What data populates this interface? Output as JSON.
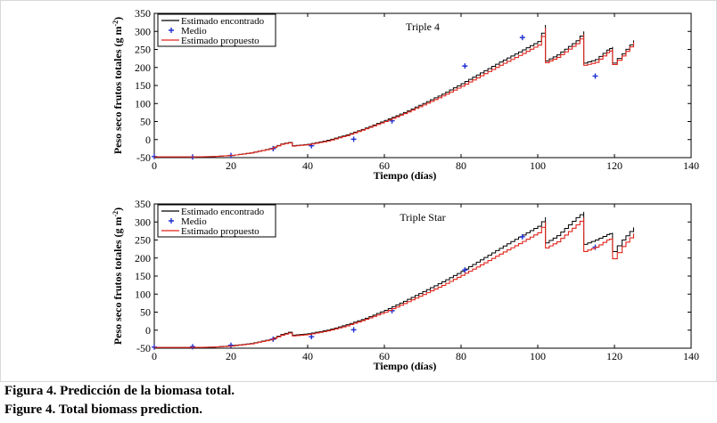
{
  "colors": {
    "encontrado": "#000000",
    "medio": "#1f2fd0",
    "propuesto": "#e0241b"
  },
  "captions": {
    "es": "Figura 4. Predicción de la biomasa total.",
    "en": "Figure 4. Total biomass prediction."
  },
  "chart_data": [
    {
      "type": "line",
      "title": "Triple 4",
      "xlabel": "Tiempo (días)",
      "ylabel": "Peso seco frutos totales (g m",
      "ylabel_sup": "-2",
      "ylabel_end": ")",
      "xlim": [
        0,
        140
      ],
      "ylim": [
        -50,
        350
      ],
      "xticks": [
        0,
        20,
        40,
        60,
        80,
        100,
        120,
        140
      ],
      "yticks": [
        -50,
        0,
        50,
        100,
        150,
        200,
        250,
        300,
        350
      ],
      "legend": [
        "Estimado encontrado",
        "Medio",
        "Estimado propuesto"
      ],
      "series": [
        {
          "name": "Estimado encontrado",
          "style": "step",
          "x": [
            0,
            10,
            15,
            20,
            25,
            30,
            33,
            35,
            36,
            40,
            45,
            50,
            55,
            60,
            65,
            70,
            75,
            80,
            85,
            90,
            95,
            100,
            102,
            102.01,
            105,
            110,
            112,
            112.01,
            115,
            118,
            119.5,
            119.51,
            122,
            125
          ],
          "y": [
            -48,
            -48,
            -47,
            -44,
            -37,
            -25,
            -12,
            -8,
            -17,
            -13,
            -2,
            13,
            32,
            53,
            75,
            100,
            126,
            155,
            185,
            215,
            243,
            272,
            318,
            218,
            235,
            274,
            300,
            212,
            222,
            248,
            257,
            212,
            238,
            275
          ]
        },
        {
          "name": "Medio",
          "style": "marker",
          "x": [
            0,
            10,
            20,
            31,
            41,
            52,
            62,
            81,
            96,
            115
          ],
          "y": [
            -47,
            -48,
            -44,
            -25,
            -17,
            1,
            52,
            204,
            283,
            176
          ]
        },
        {
          "name": "Estimado propuesto",
          "style": "step",
          "x": [
            0,
            10,
            15,
            20,
            25,
            30,
            33,
            35,
            36,
            40,
            45,
            50,
            55,
            60,
            65,
            70,
            75,
            80,
            85,
            90,
            95,
            100,
            102,
            102.01,
            105,
            110,
            112,
            112.01,
            115,
            118,
            119.5,
            119.51,
            122,
            125
          ],
          "y": [
            -48,
            -48,
            -47,
            -44,
            -37,
            -26,
            -13,
            -9,
            -18,
            -14,
            -4,
            11,
            30,
            50,
            72,
            96,
            121,
            148,
            177,
            206,
            233,
            262,
            310,
            213,
            228,
            266,
            292,
            206,
            214,
            241,
            250,
            208,
            232,
            270
          ]
        }
      ]
    },
    {
      "type": "line",
      "title": "Triple Star",
      "xlabel": "Tiempo (días)",
      "ylabel": "Peso seco frutos totales (g m",
      "ylabel_sup": "-2",
      "ylabel_end": ")",
      "xlim": [
        0,
        140
      ],
      "ylim": [
        -50,
        350
      ],
      "xticks": [
        0,
        20,
        40,
        60,
        80,
        100,
        120,
        140
      ],
      "yticks": [
        -50,
        0,
        50,
        100,
        150,
        200,
        250,
        300,
        350
      ],
      "legend": [
        "Estimado encontrado",
        "Medio",
        "Estimado propuesto"
      ],
      "series": [
        {
          "name": "Estimado encontrado",
          "style": "step",
          "x": [
            0,
            10,
            15,
            20,
            25,
            30,
            33,
            35,
            36,
            40,
            45,
            50,
            55,
            60,
            65,
            70,
            75,
            80,
            85,
            90,
            95,
            100,
            102,
            102.01,
            105,
            110,
            112,
            112.01,
            115,
            118,
            119.5,
            119.51,
            122,
            125
          ],
          "y": [
            -48,
            -48,
            -47,
            -43,
            -37,
            -26,
            -12,
            -6,
            -14,
            -10,
            0,
            15,
            33,
            55,
            80,
            107,
            134,
            163,
            195,
            227,
            258,
            288,
            313,
            242,
            262,
            312,
            328,
            238,
            250,
            265,
            270,
            218,
            250,
            285
          ]
        },
        {
          "name": "Medio",
          "style": "marker",
          "x": [
            0,
            10,
            20,
            31,
            41,
            52,
            62,
            81,
            96,
            115
          ],
          "y": [
            -47,
            -46,
            -42,
            -25,
            -18,
            1,
            54,
            167,
            259,
            230
          ]
        },
        {
          "name": "Estimado propuesto",
          "style": "step",
          "x": [
            0,
            10,
            15,
            20,
            25,
            30,
            33,
            35,
            36,
            40,
            45,
            50,
            55,
            60,
            65,
            70,
            75,
            80,
            85,
            90,
            95,
            100,
            102,
            102.01,
            105,
            110,
            112,
            112.01,
            115,
            118,
            119.5,
            119.51,
            122,
            125
          ],
          "y": [
            -48,
            -48,
            -47,
            -44,
            -38,
            -27,
            -14,
            -8,
            -16,
            -12,
            -2,
            12,
            30,
            50,
            74,
            99,
            124,
            152,
            181,
            211,
            240,
            270,
            300,
            228,
            245,
            292,
            312,
            218,
            230,
            250,
            255,
            198,
            232,
            268
          ]
        }
      ]
    }
  ]
}
